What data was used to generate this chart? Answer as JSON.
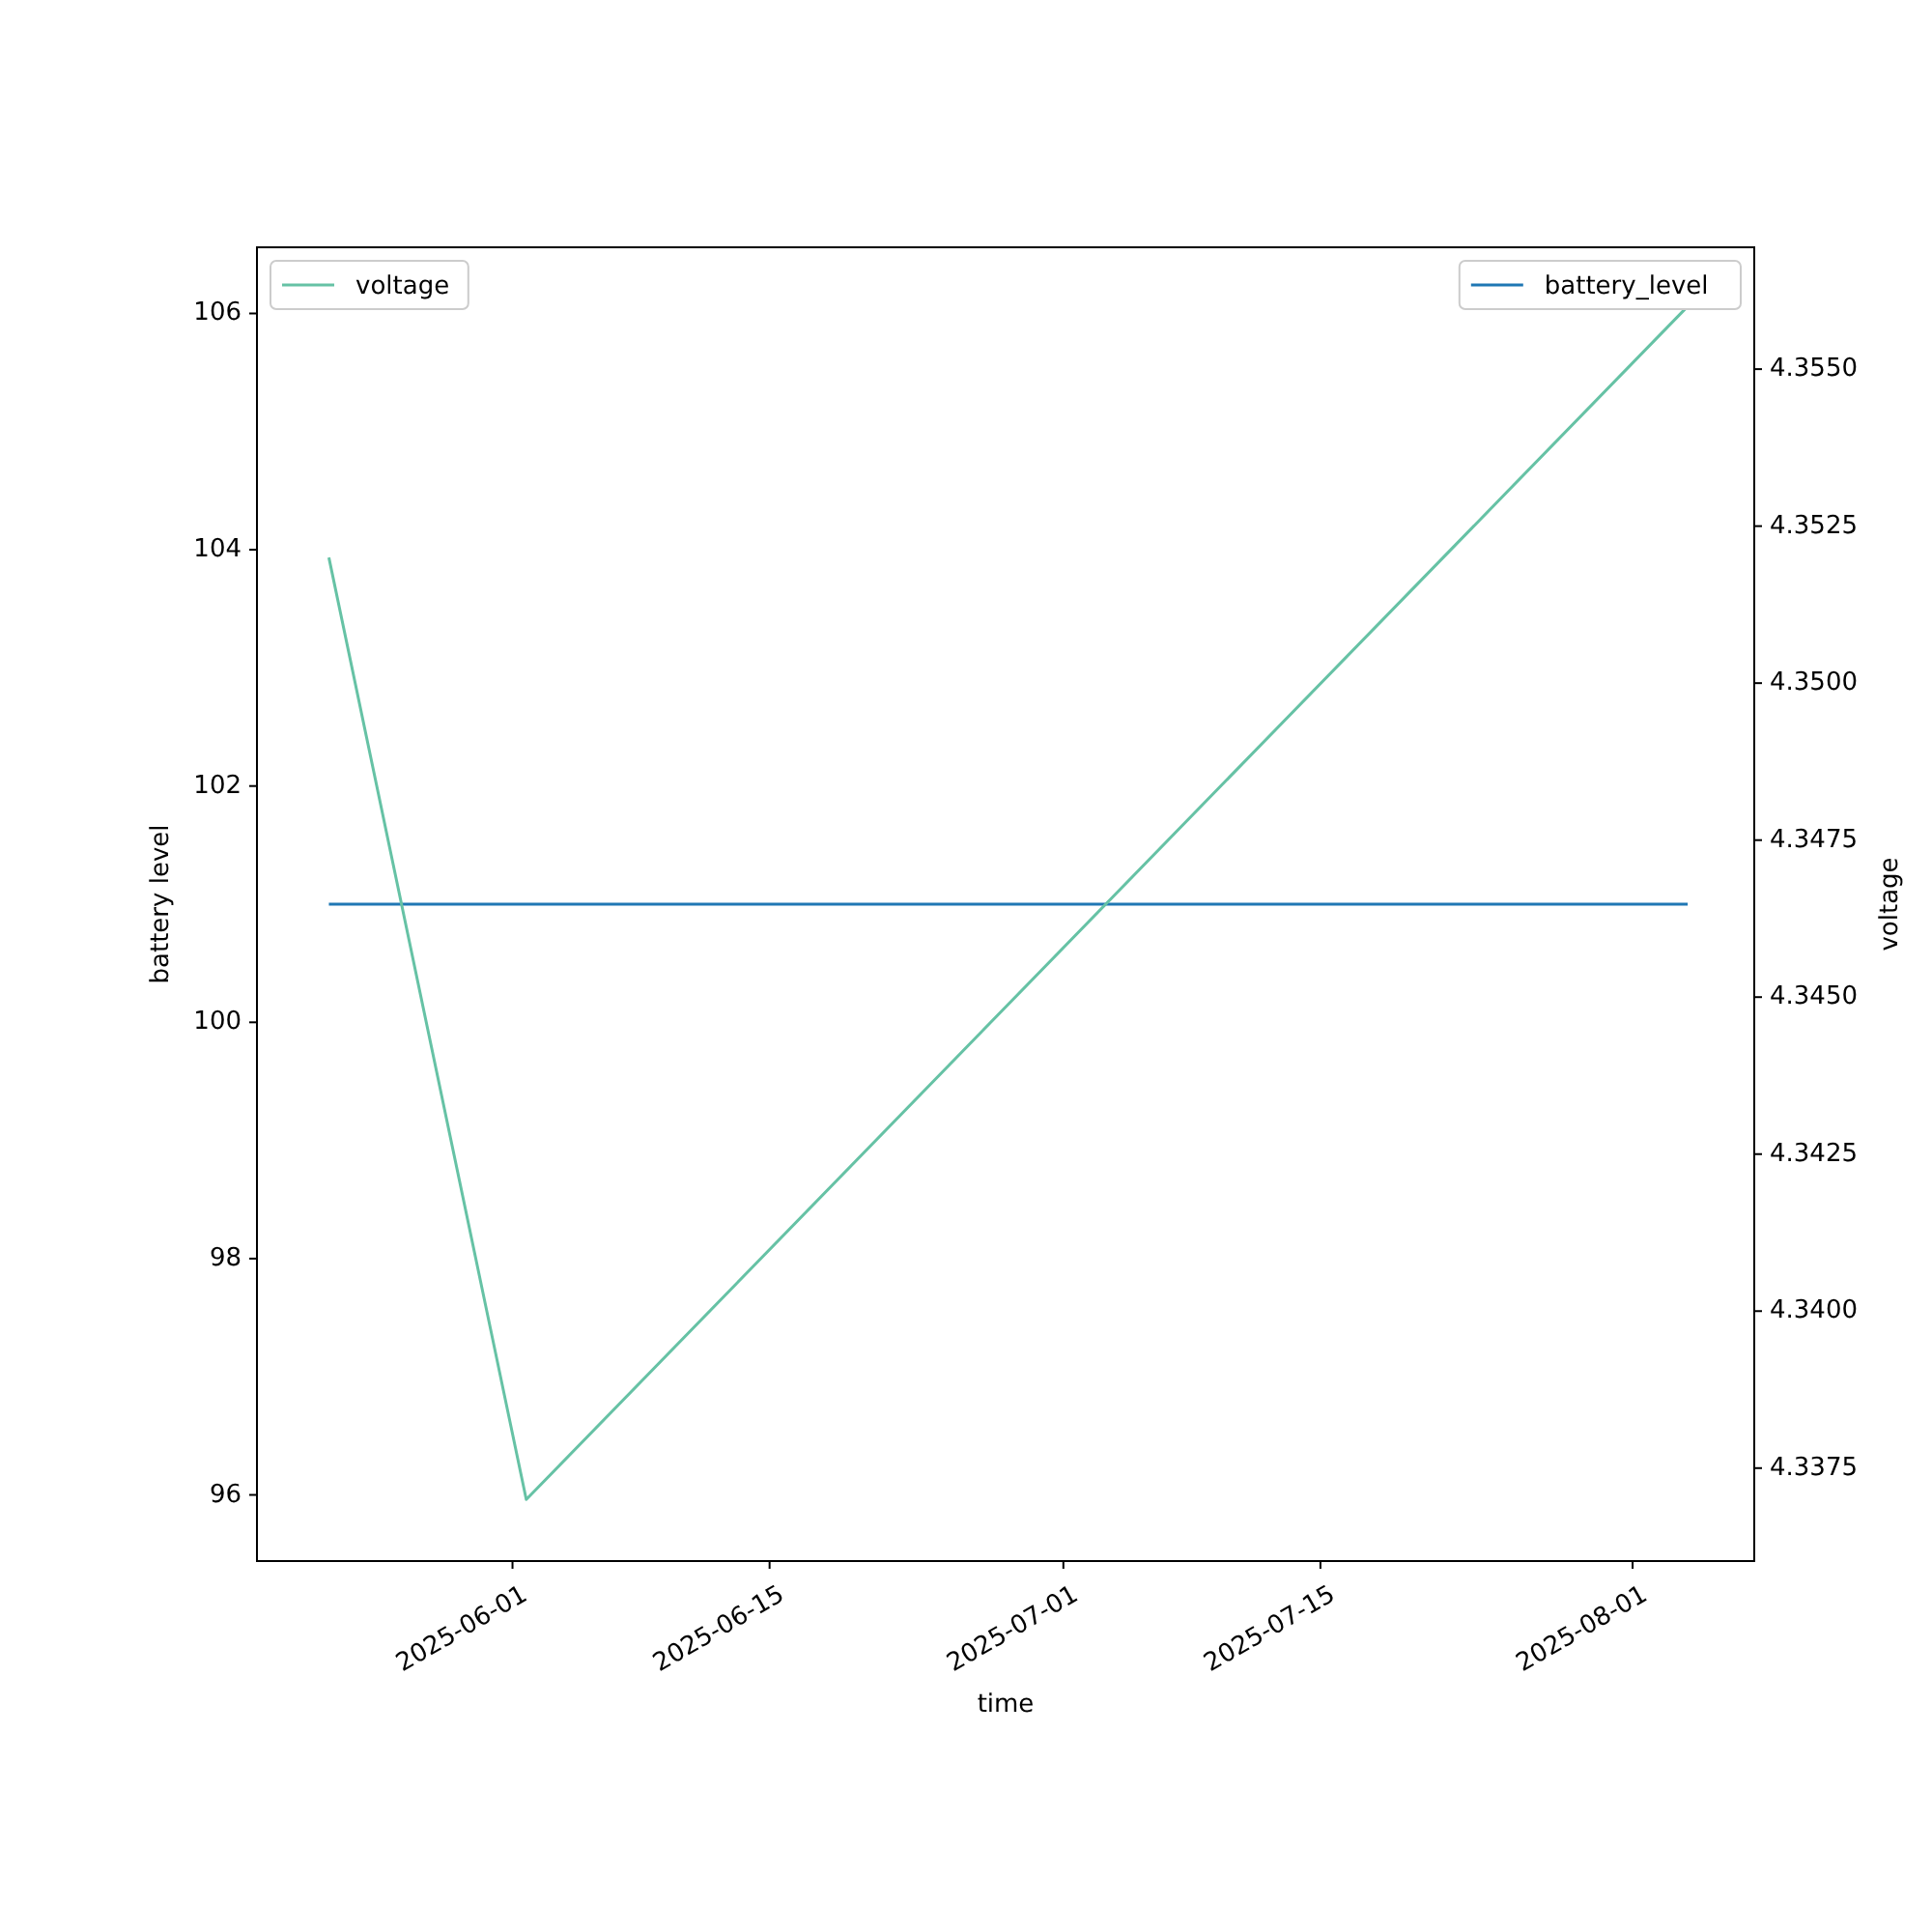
{
  "chart_data": {
    "type": "line",
    "xlabel": "time",
    "ylabel": "battery level",
    "y2label": "voltage",
    "x": [
      "2025-05-22",
      "2025-06-01T18:00",
      "2025-08-04"
    ],
    "xlim": [
      "2025-05-18T02:00",
      "2025-08-07T15:00"
    ],
    "xticks": [
      {
        "value": "2025-06-01",
        "label": "2025-06-01"
      },
      {
        "value": "2025-06-15",
        "label": "2025-06-15"
      },
      {
        "value": "2025-07-01",
        "label": "2025-07-01"
      },
      {
        "value": "2025-07-15",
        "label": "2025-07-15"
      },
      {
        "value": "2025-08-01",
        "label": "2025-08-01"
      }
    ],
    "ylim": [
      95.44,
      106.56
    ],
    "yticks": [
      96,
      98,
      100,
      102,
      104,
      106
    ],
    "y2lim": [
      4.33602,
      4.35694
    ],
    "y2ticks": [
      {
        "value": 4.3375,
        "label": "4.3375"
      },
      {
        "value": 4.34,
        "label": "4.3400"
      },
      {
        "value": 4.3425,
        "label": "4.3425"
      },
      {
        "value": 4.345,
        "label": "4.3450"
      },
      {
        "value": 4.3475,
        "label": "4.3475"
      },
      {
        "value": 4.35,
        "label": "4.3500"
      },
      {
        "value": 4.3525,
        "label": "4.3525"
      },
      {
        "value": 4.355,
        "label": "4.3550"
      }
    ],
    "series": [
      {
        "name": "battery_level",
        "color": "#1f77b4",
        "values": [
          101,
          101,
          101
        ]
      },
      {
        "name": "voltage",
        "color": "#66c2a5",
        "axis": "y2",
        "values": [
          4.352,
          4.337,
          4.356
        ]
      }
    ],
    "legend": "top right",
    "grid": false
  }
}
